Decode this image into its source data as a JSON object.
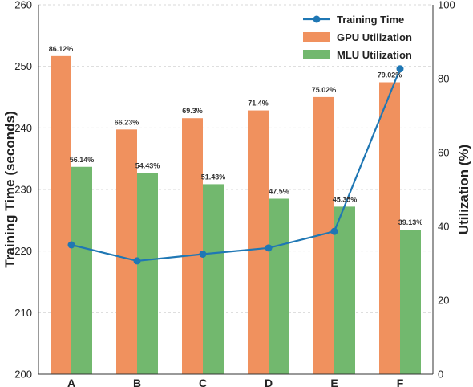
{
  "chart_data": {
    "type": "bar",
    "categories": [
      "A",
      "B",
      "C",
      "D",
      "E",
      "F"
    ],
    "series": [
      {
        "name": "GPU Utilization",
        "type": "bar",
        "axis": "right",
        "color": "#f0915e",
        "values": [
          86.12,
          66.23,
          69.3,
          71.4,
          75.02,
          79.02
        ],
        "labels": [
          "86.12%",
          "66.23%",
          "69.3%",
          "71.4%",
          "75.02%",
          "79.02%"
        ]
      },
      {
        "name": "MLU Utilization",
        "type": "bar",
        "axis": "right",
        "color": "#72b86e",
        "values": [
          56.14,
          54.43,
          51.43,
          47.5,
          45.35,
          39.13
        ],
        "labels": [
          "56.14%",
          "54.43%",
          "51.43%",
          "47.5%",
          "45.35%",
          "39.13%"
        ]
      },
      {
        "name": "Training Time",
        "type": "line",
        "axis": "left",
        "color": "#1f77b4",
        "values": [
          221.0,
          218.4,
          219.5,
          220.5,
          223.2,
          249.6
        ]
      }
    ],
    "ylabel": "Training Time (seconds)",
    "y2label": "Utilization (%)",
    "ylim": [
      200,
      260
    ],
    "y2lim": [
      0,
      100
    ],
    "yticks": [
      200,
      210,
      220,
      230,
      240,
      250,
      260
    ],
    "y2ticks": [
      0,
      20,
      40,
      60,
      80,
      100
    ],
    "grid": true,
    "legend": "top-right"
  }
}
